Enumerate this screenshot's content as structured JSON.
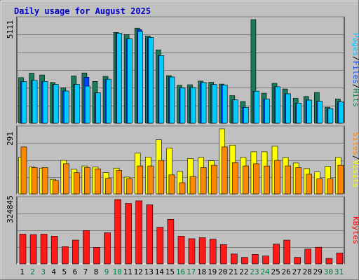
{
  "chart_data": {
    "type": "bar",
    "title": "Daily usage for August 2025",
    "categories": [
      "1",
      "2",
      "3",
      "4",
      "5",
      "6",
      "7",
      "8",
      "9",
      "10",
      "11",
      "12",
      "13",
      "14",
      "15",
      "16",
      "17",
      "18",
      "19",
      "20",
      "21",
      "22",
      "23",
      "24",
      "25",
      "26",
      "27",
      "28",
      "29",
      "30",
      "31"
    ],
    "weekend_days": [
      "2",
      "3",
      "9",
      "10",
      "16",
      "17",
      "23",
      "24",
      "30",
      "31"
    ],
    "panels": [
      {
        "id": "hits-files-pages",
        "max_label": "5111",
        "ymax": 5111,
        "legend": [
          {
            "text": "Pages",
            "color": "#00c0ff"
          },
          {
            "text": "/",
            "color": "#000000"
          },
          {
            "text": "Files",
            "color": "#0040ff"
          },
          {
            "text": "/",
            "color": "#000000"
          },
          {
            "text": "Hits",
            "color": "#008040"
          }
        ],
        "series": [
          {
            "name": "Hits",
            "color": "#1a7a5a",
            "values": [
              2250,
              2470,
              2380,
              2010,
              1750,
              2330,
              2480,
              2060,
              2310,
              4480,
              4370,
              4690,
              4300,
              3620,
              2350,
              1870,
              1900,
              2080,
              2020,
              1930,
              1360,
              1070,
              5111,
              1480,
              1970,
              1690,
              1230,
              1320,
              1520,
              790,
              1190
            ]
          },
          {
            "name": "Files",
            "color": "#0044ff",
            "values": [
              2050,
              2110,
              2060,
              1910,
              1590,
              1910,
              2270,
              1500,
              2170,
              4440,
              4160,
              4620,
              4230,
              3340,
              2280,
              1740,
              1760,
              2010,
              1910,
              1890,
              1150,
              780,
              1580,
              1190,
              1800,
              1450,
              990,
              1140,
              1080,
              720,
              1050
            ]
          },
          {
            "name": "Pages",
            "color": "#00ccff",
            "values": [
              2050,
              2110,
              2060,
              1910,
              1590,
              1910,
              1830,
              1500,
              2170,
              4440,
              4160,
              4520,
              4230,
              3340,
              2280,
              1740,
              1760,
              2010,
              1910,
              1890,
              1150,
              780,
              1580,
              1190,
              1800,
              1450,
              990,
              1140,
              1080,
              720,
              1050
            ]
          }
        ]
      },
      {
        "id": "visits-sites",
        "max_label": "291",
        "ymax": 291,
        "legend": [
          {
            "text": "Sites",
            "color": "#ff8000"
          },
          {
            "text": "/",
            "color": "#000000"
          },
          {
            "text": "Visits",
            "color": "#ffff00"
          }
        ],
        "series": [
          {
            "name": "Visits",
            "color": "#ffff00",
            "values": [
              165,
              120,
              115,
              65,
              150,
              110,
              125,
              120,
              95,
              115,
              75,
              182,
              165,
              242,
              205,
              100,
              158,
              163,
              148,
              291,
              218,
              163,
              188,
              188,
              213,
              162,
              138,
              113,
              98,
              123,
              163
            ]
          },
          {
            "name": "Sites",
            "color": "#ff8800",
            "values": [
              210,
              118,
              118,
              60,
              135,
              95,
              118,
              112,
              70,
              105,
              68,
              125,
              125,
              150,
              85,
              50,
              78,
              118,
              128,
              210,
              140,
              125,
              135,
              125,
              150,
              125,
              118,
              88,
              68,
              68,
              128
            ]
          }
        ]
      },
      {
        "id": "kbytes",
        "max_label": "324845",
        "ymax": 324845,
        "legend": [
          {
            "text": "KBytes",
            "color": "#ff0000"
          }
        ],
        "series": [
          {
            "name": "KBytes",
            "color": "#ff1a1a",
            "values": [
              150000,
              148000,
              150000,
              140000,
              87000,
              120000,
              168000,
              83000,
              157000,
              324845,
              305000,
              318000,
              298000,
              185000,
              225000,
              140000,
              127000,
              132000,
              125000,
              97000,
              50000,
              33000,
              48000,
              40000,
              100000,
              120000,
              33000,
              75000,
              84000,
              28000,
              55000
            ]
          }
        ]
      }
    ]
  }
}
